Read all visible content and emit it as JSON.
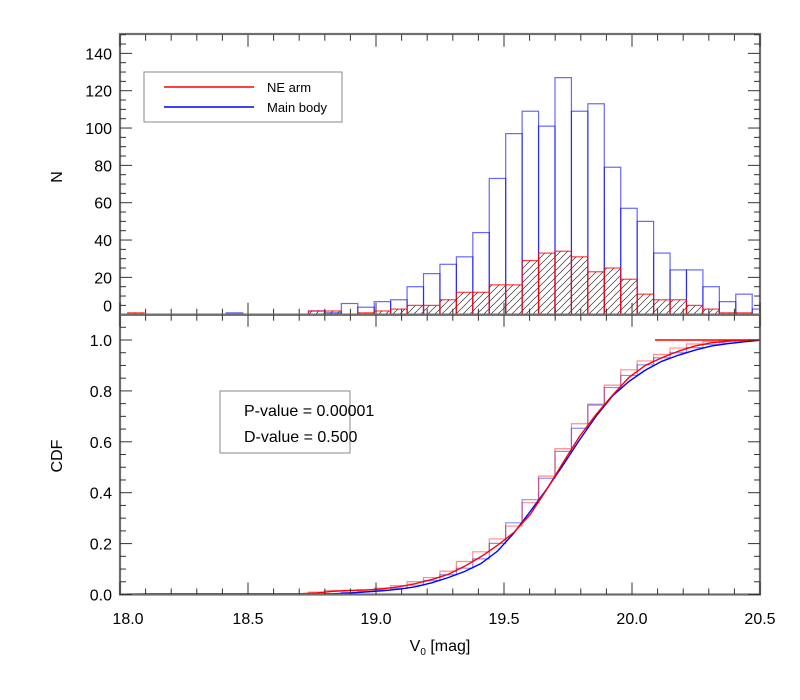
{
  "chart_data": [
    {
      "type": "bar",
      "subtype": "histogram",
      "panel": "top",
      "title": "",
      "xlabel": "",
      "ylabel": "N",
      "xlim": [
        18.0,
        20.5
      ],
      "ylim": [
        0,
        150
      ],
      "yticks": [
        0,
        20,
        40,
        60,
        80,
        100,
        120,
        140
      ],
      "bin_start": 18.03,
      "bin_width": 0.0642,
      "bin_centers": [
        18.063,
        18.127,
        18.191,
        18.255,
        18.319,
        18.384,
        18.448,
        18.512,
        18.576,
        18.64,
        18.704,
        18.769,
        18.833,
        18.897,
        18.961,
        19.025,
        19.089,
        19.154,
        19.218,
        19.282,
        19.346,
        19.41,
        19.474,
        19.539,
        19.603,
        19.667,
        19.731,
        19.795,
        19.859,
        19.924,
        19.988,
        20.052,
        20.116,
        20.18,
        20.244,
        20.309,
        20.373,
        20.437,
        20.501
      ],
      "series": [
        {
          "name": "Main body",
          "color": "#0000ff",
          "values": [
            0,
            0,
            0,
            0,
            0,
            0,
            1,
            0,
            0,
            0,
            0,
            2,
            1,
            6,
            4,
            7,
            8,
            15,
            22,
            27,
            31,
            44,
            73,
            97,
            109,
            101,
            127,
            109,
            113,
            79,
            57,
            50,
            33,
            24,
            24,
            15,
            7,
            11,
            3
          ]
        },
        {
          "name": "NE arm",
          "color": "#ff0000",
          "hatched": true,
          "values": [
            1,
            0,
            0,
            0,
            0,
            0,
            0,
            0,
            0,
            0,
            0,
            2,
            2,
            0,
            1,
            2,
            3,
            5,
            5,
            8,
            12,
            12,
            16,
            16,
            29,
            33,
            34,
            31,
            23,
            25,
            19,
            11,
            8,
            8,
            5,
            3,
            1,
            1,
            0
          ]
        }
      ],
      "legend": {
        "position": "upper-left",
        "entries": [
          {
            "label": "NE arm",
            "color": "#ff0000"
          },
          {
            "label": "Main body",
            "color": "#0000ff"
          }
        ]
      }
    },
    {
      "type": "line",
      "panel": "bottom",
      "title": "",
      "xlabel": "V0 [mag]",
      "ylabel": "CDF",
      "xlim": [
        18.0,
        20.5
      ],
      "ylim": [
        0.0,
        1.0
      ],
      "yticks": [
        0.0,
        0.2,
        0.4,
        0.6,
        0.8,
        1.0
      ],
      "xticks": [
        18.0,
        18.5,
        19.0,
        19.5,
        20.0,
        20.5
      ],
      "series": [
        {
          "name": "NE arm",
          "color": "#ff0000",
          "derived_from": "cumulative histogram",
          "end_x": 20.09
        },
        {
          "name": "Main body",
          "color": "#0000ff",
          "derived_from": "cumulative histogram",
          "end_x": 20.5
        }
      ],
      "annotations": [
        "P-value = 0.00001",
        "D-value = 0.500"
      ]
    }
  ],
  "top": {
    "ylabel": "N",
    "ytick_labels": [
      "0",
      "20",
      "40",
      "60",
      "80",
      "100",
      "120",
      "140"
    ],
    "legend": {
      "ne_arm": "NE arm",
      "main_body": "Main body"
    }
  },
  "bottom": {
    "ylabel": "CDF",
    "ytick_labels": [
      "0.0",
      "0.2",
      "0.4",
      "0.6",
      "0.8",
      "1.0"
    ],
    "xtick_labels": [
      "18.0",
      "18.5",
      "19.0",
      "19.5",
      "20.0",
      "20.5"
    ],
    "xlabel_main": "V",
    "xlabel_sub": "0",
    "xlabel_unit": " [mag]",
    "stats": {
      "p_value": "P-value = 0.00001",
      "d_value": "D-value = 0.500"
    }
  },
  "colors": {
    "ne_arm": "#ff0000",
    "main_body": "#0000ff",
    "axis": "#6e6e6e"
  }
}
